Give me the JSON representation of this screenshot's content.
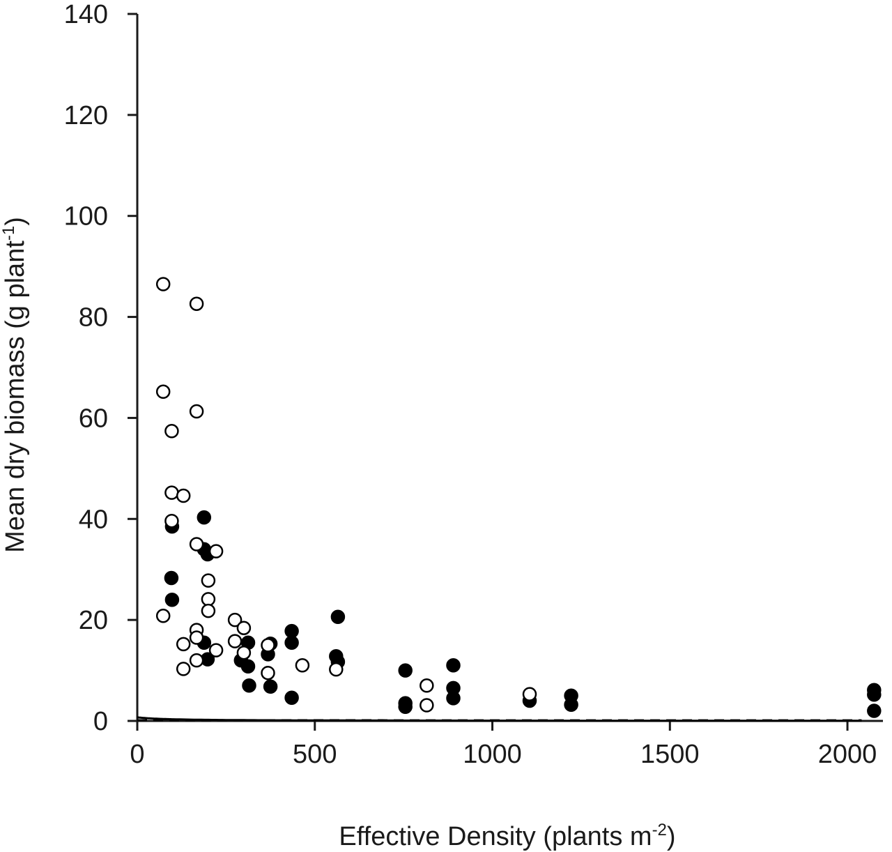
{
  "chart_data": {
    "type": "scatter",
    "title": "",
    "xlabel": "Effective Density (plants m",
    "xlabel_sup": "-2",
    "xlabel_end": ")",
    "ylabel": "Mean dry biomass (g plant",
    "ylabel_sup": "-1",
    "ylabel_end": ")",
    "xlim": [
      0,
      2100
    ],
    "ylim": [
      0,
      140
    ],
    "xticks": [
      0,
      500,
      1000,
      1500,
      2000
    ],
    "yticks": [
      0,
      20,
      40,
      60,
      80,
      100,
      120,
      140
    ],
    "grid": false,
    "series": [
      {
        "marker": "filled-circle",
        "points": [
          [
            98,
            38.5
          ],
          [
            96,
            28.3
          ],
          [
            98,
            24.0
          ],
          [
            188,
            40.3
          ],
          [
            188,
            34.0
          ],
          [
            198,
            33.0
          ],
          [
            188,
            15.5
          ],
          [
            198,
            12.2
          ],
          [
            292,
            12.0
          ],
          [
            312,
            15.5
          ],
          [
            312,
            10.8
          ],
          [
            315,
            7.0
          ],
          [
            368,
            13.2
          ],
          [
            375,
            15.3
          ],
          [
            375,
            6.8
          ],
          [
            435,
            17.8
          ],
          [
            435,
            15.5
          ],
          [
            435,
            4.6
          ],
          [
            565,
            20.6
          ],
          [
            560,
            12.8
          ],
          [
            565,
            11.7
          ],
          [
            755,
            10.0
          ],
          [
            755,
            3.5
          ],
          [
            755,
            2.8
          ],
          [
            890,
            11.0
          ],
          [
            890,
            6.5
          ],
          [
            890,
            4.5
          ],
          [
            1105,
            4.0
          ],
          [
            1222,
            5.0
          ],
          [
            1222,
            3.2
          ],
          [
            2075,
            6.1
          ],
          [
            2075,
            5.2
          ],
          [
            2075,
            2.0
          ]
        ]
      },
      {
        "marker": "open-circle",
        "points": [
          [
            73,
            86.5
          ],
          [
            73,
            65.2
          ],
          [
            73,
            20.8
          ],
          [
            97,
            57.4
          ],
          [
            97,
            45.2
          ],
          [
            97,
            39.6
          ],
          [
            130,
            44.6
          ],
          [
            130,
            15.2
          ],
          [
            130,
            10.3
          ],
          [
            167,
            82.6
          ],
          [
            167,
            61.3
          ],
          [
            167,
            35.0
          ],
          [
            167,
            18.0
          ],
          [
            167,
            16.5
          ],
          [
            167,
            12.0
          ],
          [
            200,
            27.8
          ],
          [
            200,
            24.1
          ],
          [
            200,
            21.8
          ],
          [
            222,
            33.6
          ],
          [
            222,
            14.0
          ],
          [
            275,
            20.0
          ],
          [
            275,
            15.8
          ],
          [
            300,
            18.4
          ],
          [
            300,
            13.5
          ],
          [
            368,
            15.0
          ],
          [
            368,
            9.5
          ],
          [
            465,
            11.0
          ],
          [
            560,
            10.2
          ],
          [
            815,
            7.0
          ],
          [
            815,
            3.1
          ],
          [
            1105,
            5.3
          ]
        ]
      }
    ],
    "fitted_curves": [
      {
        "style": "solid",
        "a": 0.0163,
        "b": 1.4,
        "x_end": 2040
      },
      {
        "style": "dashed",
        "a": 0.000595,
        "b": 7.21,
        "x_end": 2040
      }
    ]
  }
}
